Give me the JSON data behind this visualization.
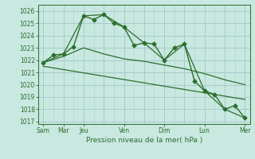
{
  "background_color": "#c8e8e0",
  "grid_color": "#a0c8c8",
  "line_color": "#2d6e2d",
  "title": "Pression niveau de la mer( hPa )",
  "xlabels_display": [
    "Sam",
    "Mar",
    "Jeu",
    "Ven",
    "Dim",
    "Lun",
    "Mer"
  ],
  "xlabels_display_pos": [
    0,
    2,
    4,
    8,
    12,
    16,
    20
  ],
  "ylim": [
    1016.8,
    1026.5
  ],
  "yticks": [
    1017,
    1018,
    1019,
    1020,
    1021,
    1022,
    1023,
    1024,
    1025,
    1026
  ],
  "series": [
    {
      "name": "main_spiky",
      "x": [
        0,
        1,
        2,
        3,
        4,
        5,
        6,
        7,
        8,
        9,
        10,
        11,
        12,
        13,
        14,
        15,
        16,
        17,
        18,
        19,
        20
      ],
      "y": [
        1021.8,
        1022.4,
        1022.5,
        1023.1,
        1025.6,
        1025.3,
        1025.7,
        1025.0,
        1024.7,
        1023.2,
        1023.4,
        1023.3,
        1022.0,
        1023.0,
        1023.3,
        1020.3,
        1019.5,
        1019.2,
        1018.0,
        1018.3,
        1017.3
      ],
      "marker": "D",
      "markersize": 2.5,
      "linewidth": 1.0
    },
    {
      "name": "smooth_upper",
      "x": [
        0,
        2,
        4,
        6,
        8,
        10,
        12,
        14,
        16,
        18,
        20
      ],
      "y": [
        1021.8,
        1022.5,
        1025.6,
        1025.7,
        1024.7,
        1023.4,
        1022.0,
        1023.3,
        1019.5,
        1018.0,
        1017.3
      ],
      "marker": null,
      "markersize": 0,
      "linewidth": 0.9
    },
    {
      "name": "smooth_mid",
      "x": [
        0,
        2,
        4,
        6,
        8,
        10,
        12,
        14,
        16,
        18,
        20
      ],
      "y": [
        1021.8,
        1022.3,
        1023.0,
        1022.5,
        1022.1,
        1021.9,
        1021.6,
        1021.3,
        1020.9,
        1020.4,
        1020.0
      ],
      "marker": null,
      "markersize": 0,
      "linewidth": 0.9
    },
    {
      "name": "linear_trend",
      "x": [
        0,
        20
      ],
      "y": [
        1021.5,
        1018.8
      ],
      "marker": null,
      "markersize": 0,
      "linewidth": 0.9
    }
  ]
}
